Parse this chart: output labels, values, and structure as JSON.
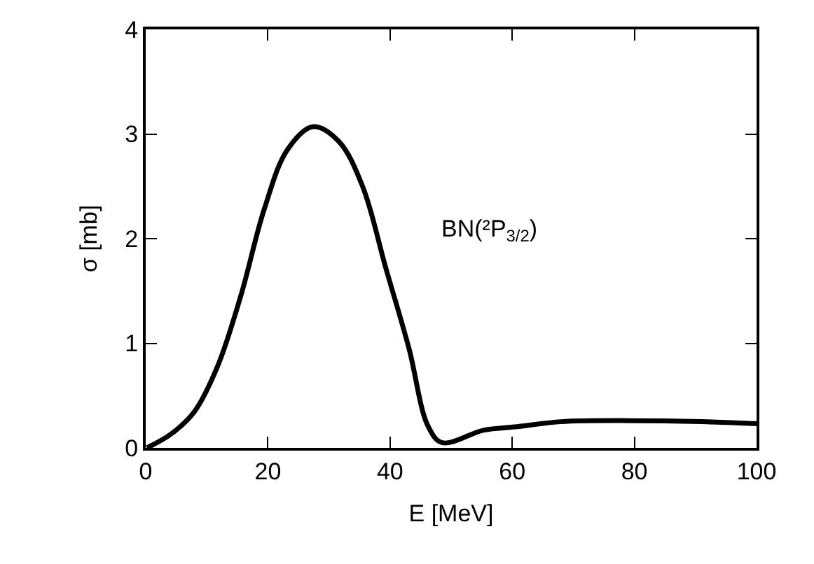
{
  "chart_data": {
    "type": "line",
    "xlabel": "E [MeV]",
    "ylabel": "σ [mb]",
    "x": [
      0.2,
      4.1,
      7.9,
      11.7,
      15.6,
      19.4,
      23.2,
      27.4,
      31.6,
      35.5,
      39.3,
      43.1,
      46.2,
      48.5,
      55.4,
      60.4,
      68,
      79.5,
      91,
      100
    ],
    "series": [
      {
        "color": "#000000",
        "values": [
          0,
          0.13,
          0.34,
          0.77,
          1.46,
          2.28,
          2.85,
          3.07,
          2.93,
          2.5,
          1.72,
          0.95,
          0.21,
          0.05,
          0.17,
          0.2,
          0.25,
          0.26,
          0.25,
          0.23
        ]
      }
    ],
    "xlim": [
      0,
      100
    ],
    "xticks": [
      0,
      20,
      40,
      60,
      80,
      100
    ],
    "ylim": [
      0,
      4
    ],
    "yticks": [
      0,
      1,
      2,
      3,
      4
    ],
    "annotations": [
      "BN(²P$_{3/2}$)"
    ],
    "legend": false,
    "marker": "none",
    "line_style": "solid"
  }
}
